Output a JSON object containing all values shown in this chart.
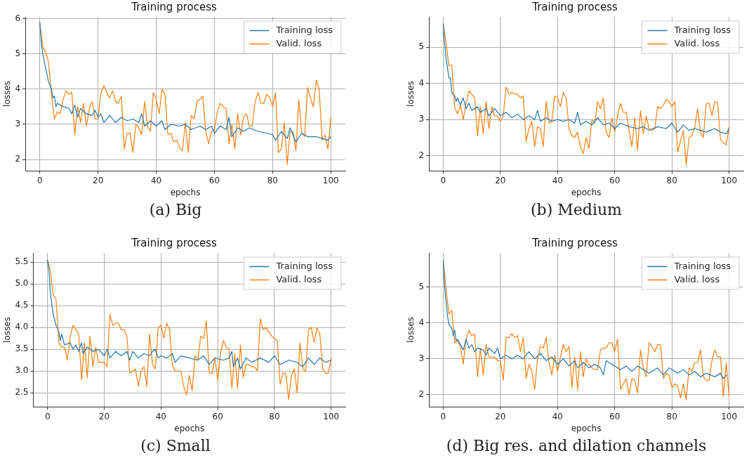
{
  "chart_data": [
    {
      "type": "line",
      "title": "Training process",
      "xlabel": "epochs",
      "ylabel": "losses",
      "annotations": [
        "(a) Big"
      ],
      "xlim": [
        -5,
        105
      ],
      "xticks": [
        0,
        20,
        40,
        60,
        80,
        100
      ],
      "ylim": [
        1.68,
        6.05
      ],
      "yticks": [
        2,
        3,
        4,
        5,
        6
      ],
      "grid": true,
      "legend": "top right",
      "marker": "none",
      "line_style": "solid",
      "series": [
        {
          "name": "Training loss",
          "color": "#1f77b4",
          "x": [
            0,
            0.5,
            1,
            2,
            3,
            4,
            4.5,
            5,
            5.5,
            6,
            8,
            10,
            11,
            12,
            13,
            14,
            16,
            18,
            19,
            20,
            21,
            22,
            24,
            26,
            28,
            30,
            32,
            34,
            35,
            36,
            38,
            40,
            42,
            43,
            45,
            48,
            50,
            52,
            55,
            57,
            59,
            60,
            62,
            64,
            65,
            66,
            68,
            70,
            72,
            75,
            78,
            80,
            81,
            83,
            85,
            86,
            88,
            90,
            92,
            95,
            97,
            99,
            100
          ],
          "values": [
            5.9,
            5.3,
            5.0,
            4.6,
            4.2,
            4.0,
            3.75,
            3.8,
            3.5,
            3.6,
            3.5,
            3.45,
            3.3,
            3.55,
            3.2,
            3.45,
            3.3,
            3.25,
            3.4,
            3.2,
            3.3,
            3.05,
            3.25,
            3.05,
            3.2,
            3.1,
            3.15,
            3.05,
            3.3,
            2.95,
            3.1,
            2.95,
            3.1,
            2.85,
            3.0,
            2.95,
            3.0,
            2.85,
            2.95,
            2.85,
            2.95,
            2.75,
            2.95,
            2.85,
            3.2,
            2.65,
            2.9,
            2.8,
            2.9,
            2.8,
            2.75,
            2.7,
            2.55,
            2.8,
            2.6,
            2.9,
            2.5,
            2.75,
            2.65,
            2.65,
            2.6,
            2.55,
            2.65
          ]
        },
        {
          "name": "Valid. loss",
          "color": "#ff7f0e",
          "x": [
            0,
            1,
            2,
            3,
            4,
            5,
            6,
            7,
            8,
            9,
            10,
            11,
            12,
            13,
            14,
            15,
            16,
            17,
            18,
            19,
            20,
            21,
            22,
            23,
            24,
            25,
            26,
            27,
            28,
            29,
            30,
            31,
            32,
            33,
            34,
            35,
            36,
            37,
            38,
            39,
            40,
            41,
            42,
            43,
            44,
            45,
            46,
            47,
            48,
            49,
            50,
            51,
            52,
            53,
            54,
            55,
            56,
            57,
            58,
            59,
            60,
            61,
            62,
            63,
            64,
            65,
            66,
            67,
            68,
            69,
            70,
            71,
            72,
            73,
            74,
            75,
            76,
            77,
            78,
            79,
            80,
            81,
            82,
            83,
            84,
            85,
            86,
            87,
            88,
            89,
            90,
            91,
            92,
            93,
            94,
            95,
            96,
            97,
            98,
            99,
            100
          ],
          "values": [
            5.85,
            5.2,
            5.05,
            4.75,
            3.85,
            3.15,
            3.35,
            3.3,
            3.7,
            3.95,
            3.85,
            3.9,
            2.7,
            3.5,
            3.05,
            3.6,
            2.95,
            3.45,
            3.65,
            3.15,
            3.15,
            3.9,
            4.1,
            3.9,
            3.75,
            3.95,
            3.65,
            3.6,
            3.8,
            2.3,
            2.75,
            2.75,
            2.2,
            3.0,
            2.9,
            2.7,
            3.65,
            2.95,
            2.8,
            3.9,
            3.7,
            3.3,
            4.0,
            3.85,
            2.7,
            2.75,
            2.5,
            2.55,
            2.35,
            2.25,
            3.05,
            2.2,
            3.25,
            3.15,
            3.65,
            3.7,
            3.8,
            2.8,
            2.45,
            2.8,
            2.85,
            3.35,
            3.6,
            3.5,
            3.45,
            2.45,
            3.0,
            2.3,
            3.3,
            2.7,
            3.2,
            3.3,
            2.95,
            2.95,
            3.65,
            3.9,
            3.6,
            3.6,
            3.85,
            3.75,
            3.5,
            3.9,
            2.2,
            2.3,
            3.05,
            1.85,
            2.8,
            2.8,
            2.25,
            3.7,
            2.75,
            2.65,
            4.05,
            3.75,
            3.5,
            4.25,
            4.0,
            2.55,
            2.7,
            2.3,
            3.2
          ]
        }
      ]
    },
    {
      "type": "line",
      "title": "Training process",
      "xlabel": "epochs",
      "ylabel": "losses",
      "annotations": [
        "(b) Medium"
      ],
      "xlim": [
        -5,
        105
      ],
      "xticks": [
        0,
        20,
        40,
        60,
        80,
        100
      ],
      "ylim": [
        1.58,
        5.84
      ],
      "yticks": [
        2,
        3,
        4,
        5
      ],
      "grid": true,
      "legend": "top right",
      "marker": "none",
      "line_style": "solid",
      "series": [
        {
          "name": "Training loss",
          "color": "#1f77b4",
          "x": [
            0,
            0.5,
            1,
            2,
            2.5,
            3,
            4,
            4.5,
            5,
            6,
            7,
            8,
            9,
            10,
            12,
            13,
            15,
            16,
            18,
            20,
            22,
            24,
            26,
            28,
            30,
            32,
            33,
            34,
            36,
            38,
            40,
            42,
            44,
            46,
            47,
            48,
            50,
            52,
            54,
            56,
            58,
            60,
            62,
            65,
            68,
            70,
            72,
            75,
            78,
            80,
            82,
            84,
            86,
            88,
            90,
            92,
            95,
            97,
            99,
            100
          ],
          "values": [
            5.65,
            5.1,
            4.7,
            4.15,
            4.15,
            3.75,
            3.65,
            3.5,
            3.6,
            3.4,
            3.6,
            3.3,
            3.45,
            3.25,
            3.35,
            3.2,
            3.3,
            3.1,
            3.3,
            3.1,
            3.2,
            3.05,
            3.15,
            3.0,
            3.1,
            3.0,
            3.25,
            2.95,
            3.05,
            2.95,
            3.0,
            2.95,
            3.0,
            2.9,
            3.2,
            2.85,
            2.95,
            2.85,
            3.05,
            2.85,
            2.9,
            2.75,
            2.9,
            2.8,
            2.75,
            2.8,
            2.7,
            2.8,
            2.75,
            2.9,
            2.65,
            2.85,
            2.7,
            2.75,
            2.7,
            2.65,
            2.75,
            2.65,
            2.6,
            2.75
          ]
        },
        {
          "name": "Valid. loss",
          "color": "#ff7f0e",
          "x": [
            0,
            1,
            2,
            3,
            4,
            5,
            6,
            7,
            8,
            9,
            10,
            11,
            12,
            13,
            14,
            15,
            16,
            17,
            18,
            19,
            20,
            21,
            22,
            23,
            24,
            25,
            26,
            27,
            28,
            29,
            30,
            31,
            32,
            33,
            34,
            35,
            36,
            37,
            38,
            39,
            40,
            41,
            42,
            43,
            44,
            45,
            46,
            47,
            48,
            49,
            50,
            51,
            52,
            53,
            54,
            55,
            56,
            57,
            58,
            59,
            60,
            61,
            62,
            63,
            64,
            65,
            66,
            67,
            68,
            69,
            70,
            71,
            72,
            73,
            74,
            75,
            76,
            77,
            78,
            79,
            80,
            81,
            82,
            83,
            84,
            85,
            86,
            87,
            88,
            89,
            90,
            91,
            92,
            93,
            94,
            95,
            96,
            97,
            98,
            99,
            100
          ],
          "values": [
            5.65,
            5.1,
            4.5,
            4.5,
            3.35,
            3.15,
            3.4,
            3.0,
            3.45,
            3.8,
            3.7,
            3.6,
            2.55,
            3.35,
            2.6,
            3.5,
            2.75,
            3.35,
            3.1,
            3.1,
            2.95,
            3.1,
            3.9,
            3.7,
            3.75,
            3.7,
            3.7,
            3.6,
            3.65,
            2.4,
            2.75,
            2.95,
            2.25,
            2.8,
            2.75,
            2.25,
            3.5,
            2.9,
            2.95,
            3.65,
            3.6,
            3.35,
            3.75,
            3.6,
            2.75,
            2.55,
            2.5,
            2.65,
            2.25,
            2.05,
            2.5,
            2.2,
            3.0,
            2.9,
            3.5,
            3.3,
            3.6,
            2.65,
            2.5,
            3.05,
            2.65,
            3.1,
            3.45,
            3.2,
            3.2,
            2.7,
            2.25,
            3.05,
            2.15,
            3.25,
            2.6,
            3.1,
            2.75,
            2.7,
            2.75,
            3.35,
            3.3,
            3.4,
            3.55,
            3.5,
            3.35,
            3.5,
            2.1,
            2.4,
            2.7,
            1.75,
            2.5,
            2.55,
            2.8,
            3.3,
            2.65,
            2.5,
            3.45,
            3.45,
            3.1,
            3.5,
            3.45,
            2.45,
            2.35,
            2.3,
            2.8
          ]
        }
      ]
    },
    {
      "type": "line",
      "title": "Training process",
      "xlabel": "epochs",
      "ylabel": "losses",
      "annotations": [
        "(c) Small"
      ],
      "xlim": [
        -5,
        105
      ],
      "xticks": [
        0,
        20,
        40,
        60,
        80,
        100
      ],
      "ylim": [
        2.18,
        5.71
      ],
      "yticks": [
        {
          "value": 2.5,
          "label": "2.5"
        },
        {
          "value": 3,
          "label": "3.0"
        },
        {
          "value": 3.5,
          "label": "3.5"
        },
        {
          "value": 4,
          "label": "4.0"
        },
        {
          "value": 4.5,
          "label": "4.5"
        },
        {
          "value": 5,
          "label": "5.0"
        },
        {
          "value": 5.5,
          "label": "5.5"
        }
      ],
      "grid": true,
      "legend": "top right",
      "marker": "none",
      "line_style": "solid",
      "series": [
        {
          "name": "Training loss",
          "color": "#1f77b4",
          "x": [
            0,
            0.5,
            1,
            2,
            3,
            4,
            4.5,
            5,
            6,
            8,
            9,
            10,
            11,
            12,
            12.5,
            14,
            16,
            18,
            20,
            21,
            22,
            24,
            26,
            28,
            29,
            30,
            32,
            34,
            36,
            37,
            38,
            39,
            40,
            42,
            44,
            45,
            47,
            50,
            53,
            55,
            57,
            59,
            62,
            64,
            65,
            65.5,
            67,
            68,
            70,
            72,
            75,
            78,
            80,
            82,
            85,
            88,
            90,
            92,
            94,
            96,
            98,
            100
          ],
          "values": [
            5.55,
            5.3,
            4.8,
            4.3,
            4.05,
            3.9,
            3.7,
            3.85,
            3.6,
            3.65,
            3.5,
            3.6,
            3.45,
            3.65,
            3.4,
            3.55,
            3.45,
            3.5,
            3.35,
            3.5,
            3.3,
            3.45,
            3.35,
            3.45,
            3.25,
            3.45,
            3.3,
            3.4,
            3.35,
            3.45,
            3.5,
            3.3,
            3.35,
            3.3,
            3.4,
            3.2,
            3.35,
            3.3,
            3.25,
            3.35,
            3.15,
            3.3,
            3.25,
            3.3,
            3.45,
            3.1,
            3.3,
            3.05,
            3.3,
            3.2,
            3.3,
            3.2,
            3.35,
            3.15,
            3.25,
            3.2,
            3.1,
            3.3,
            3.15,
            3.3,
            3.2,
            3.25
          ]
        },
        {
          "name": "Valid. loss",
          "color": "#ff7f0e",
          "x": [
            0,
            1,
            2,
            3,
            4,
            5,
            6,
            7,
            8,
            9,
            10,
            11,
            12,
            13,
            14,
            15,
            16,
            17,
            18,
            19,
            20,
            21,
            22,
            23,
            24,
            25,
            26,
            27,
            28,
            29,
            30,
            31,
            32,
            33,
            34,
            35,
            36,
            37,
            38,
            39,
            40,
            41,
            42,
            43,
            44,
            45,
            46,
            47,
            48,
            49,
            50,
            51,
            52,
            53,
            54,
            55,
            56,
            57,
            58,
            59,
            60,
            61,
            62,
            63,
            64,
            65,
            66,
            67,
            68,
            69,
            70,
            71,
            72,
            73,
            74,
            75,
            76,
            77,
            78,
            79,
            80,
            81,
            82,
            83,
            84,
            85,
            86,
            87,
            88,
            89,
            90,
            91,
            92,
            93,
            94,
            95,
            96,
            97,
            98,
            99,
            100
          ],
          "values": [
            5.55,
            5.3,
            4.75,
            4.65,
            3.65,
            3.55,
            3.55,
            3.25,
            3.8,
            4.05,
            3.95,
            3.85,
            2.8,
            3.65,
            2.85,
            3.8,
            3.1,
            3.55,
            3.2,
            3.2,
            3.2,
            3.1,
            4.3,
            4.05,
            4.1,
            4.1,
            3.95,
            3.95,
            3.8,
            2.95,
            3.0,
            3.05,
            2.65,
            3.0,
            3.1,
            2.65,
            3.85,
            3.15,
            3.05,
            4.0,
            4.05,
            3.75,
            4.1,
            3.95,
            3.15,
            3.0,
            3.0,
            3.0,
            2.65,
            2.45,
            2.9,
            2.55,
            3.35,
            3.25,
            3.8,
            3.75,
            4.15,
            2.95,
            2.95,
            3.3,
            2.8,
            3.4,
            3.7,
            3.55,
            3.5,
            2.6,
            3.4,
            2.6,
            3.6,
            2.85,
            3.15,
            3.15,
            3.1,
            3.1,
            3.0,
            4.2,
            3.95,
            4.0,
            3.9,
            3.8,
            3.75,
            3.7,
            2.7,
            2.95,
            2.95,
            2.35,
            2.9,
            3.05,
            2.5,
            3.65,
            3.05,
            3.0,
            3.95,
            4.0,
            3.65,
            4.0,
            3.85,
            3.05,
            2.95,
            2.95,
            3.3
          ]
        }
      ]
    },
    {
      "type": "line",
      "title": "Training process",
      "xlabel": "epochs",
      "ylabel": "losses",
      "annotations": [
        "(d) Big res. and dilation channels"
      ],
      "xlim": [
        -5,
        105
      ],
      "xticks": [
        0,
        20,
        40,
        60,
        80,
        100
      ],
      "ylim": [
        1.66,
        5.96
      ],
      "yticks": [
        2,
        3,
        4,
        5
      ],
      "grid": true,
      "legend": "top right",
      "marker": "none",
      "line_style": "solid",
      "series": [
        {
          "name": "Training loss",
          "color": "#1f77b4",
          "x": [
            0,
            0.5,
            1,
            1.5,
            2,
            3,
            3.5,
            4,
            4.5,
            5,
            6,
            7,
            8,
            9,
            10,
            11,
            12,
            14,
            15,
            16,
            18,
            19,
            20,
            22,
            24,
            26,
            28,
            30,
            32,
            34,
            36,
            38,
            40,
            42,
            44,
            46,
            47,
            49,
            51,
            53,
            55,
            56,
            57,
            60,
            62,
            64,
            66,
            68,
            70,
            72,
            75,
            77,
            79,
            82,
            84,
            86,
            88,
            90,
            92,
            95,
            97,
            98,
            99
          ],
          "values": [
            5.75,
            5.0,
            4.6,
            4.2,
            3.95,
            3.85,
            3.65,
            3.8,
            3.5,
            3.55,
            3.4,
            3.25,
            3.55,
            3.3,
            3.4,
            3.2,
            3.3,
            3.25,
            3.1,
            3.3,
            3.15,
            3.3,
            3.0,
            3.1,
            3.0,
            3.1,
            3.0,
            3.2,
            3.0,
            3.15,
            2.95,
            3.05,
            2.85,
            3.0,
            2.8,
            2.95,
            2.75,
            2.9,
            2.75,
            2.85,
            2.75,
            2.55,
            2.95,
            2.8,
            2.7,
            2.8,
            2.65,
            2.8,
            2.7,
            2.6,
            2.75,
            2.55,
            2.75,
            2.6,
            2.7,
            2.55,
            2.65,
            2.5,
            2.6,
            2.5,
            2.6,
            2.45,
            2.55
          ]
        },
        {
          "name": "Valid. loss",
          "color": "#ff7f0e",
          "x": [
            0,
            1,
            2,
            3,
            4,
            5,
            6,
            7,
            8,
            9,
            10,
            11,
            12,
            13,
            14,
            15,
            16,
            17,
            18,
            19,
            20,
            21,
            22,
            23,
            24,
            25,
            26,
            27,
            28,
            29,
            30,
            31,
            32,
            33,
            34,
            35,
            36,
            37,
            38,
            39,
            40,
            41,
            42,
            43,
            44,
            45,
            46,
            47,
            48,
            49,
            50,
            51,
            52,
            53,
            54,
            55,
            56,
            57,
            58,
            59,
            60,
            61,
            62,
            63,
            64,
            65,
            66,
            67,
            68,
            69,
            70,
            71,
            72,
            73,
            74,
            75,
            76,
            77,
            78,
            79,
            80,
            81,
            82,
            83,
            84,
            85,
            86,
            87,
            88,
            89,
            90,
            91,
            92,
            93,
            94,
            95,
            96,
            97,
            98,
            99,
            100
          ],
          "values": [
            5.75,
            4.95,
            4.25,
            4.35,
            3.45,
            3.5,
            3.35,
            2.85,
            3.55,
            3.8,
            3.65,
            3.7,
            2.5,
            3.3,
            2.55,
            3.4,
            3.05,
            3.05,
            3.05,
            2.95,
            2.95,
            2.4,
            3.6,
            3.6,
            3.7,
            3.6,
            3.65,
            3.2,
            3.6,
            2.45,
            2.85,
            2.65,
            2.15,
            3.0,
            3.35,
            3.3,
            3.6,
            2.9,
            2.55,
            3.1,
            2.65,
            3.05,
            3.4,
            3.2,
            3.35,
            2.2,
            3.05,
            2.15,
            3.2,
            2.5,
            3.0,
            2.85,
            2.75,
            2.7,
            2.7,
            3.25,
            3.3,
            3.3,
            3.45,
            3.45,
            3.2,
            3.55,
            2.15,
            2.3,
            2.45,
            2.0,
            2.45,
            2.4,
            2.05,
            3.25,
            2.75,
            2.5,
            3.45,
            3.35,
            3.2,
            3.4,
            3.4,
            2.45,
            2.6,
            2.55,
            2.2,
            2.3,
            2.25,
            1.9,
            2.3,
            1.85,
            2.75,
            2.65,
            2.9,
            2.9,
            3.25,
            2.5,
            2.4,
            2.4,
            2.95,
            3.25,
            3.05,
            3.05,
            1.95,
            2.9,
            1.95
          ]
        }
      ]
    }
  ]
}
